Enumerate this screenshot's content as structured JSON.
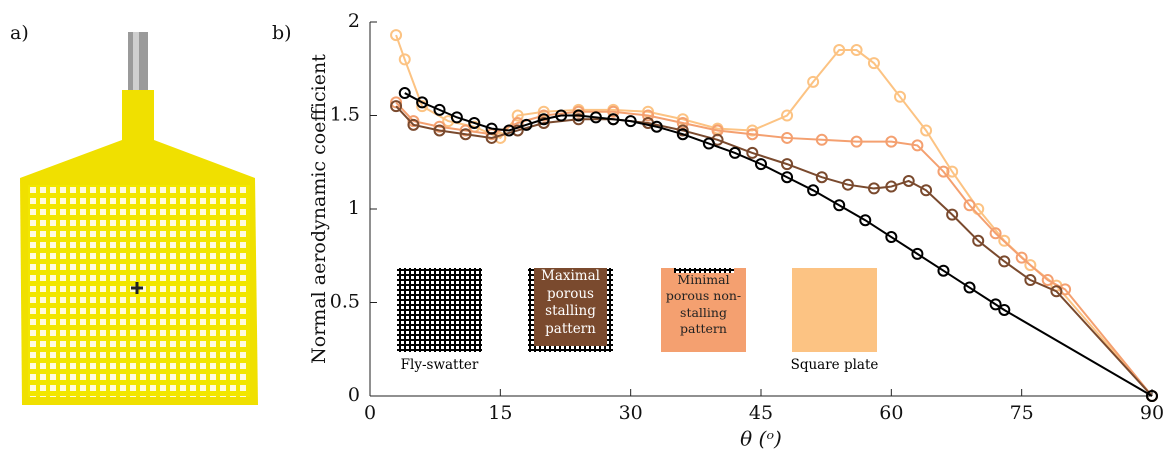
{
  "panel_a_label": "a)",
  "chart_data": {
    "type": "line",
    "panel_label": "b)",
    "x_label": "θ (ᵒ)",
    "y_label": "Normal aerodynamic coefficient",
    "xlim": [
      0,
      90
    ],
    "xticks": [
      0,
      15,
      30,
      45,
      60,
      75,
      90
    ],
    "ylim": [
      0,
      2
    ],
    "yticks": [
      0,
      0.5,
      1,
      1.5,
      2
    ],
    "series": [
      {
        "name": "Fly-swatter",
        "color": "#000000",
        "x": [
          4,
          6,
          8,
          10,
          12,
          14,
          16,
          18,
          20,
          22,
          24,
          26,
          28,
          30,
          33,
          36,
          39,
          42,
          45,
          48,
          51,
          54,
          57,
          60,
          63,
          66,
          69,
          72,
          73,
          90
        ],
        "values": [
          1.62,
          1.57,
          1.53,
          1.49,
          1.46,
          1.43,
          1.42,
          1.45,
          1.48,
          1.5,
          1.5,
          1.49,
          1.48,
          1.47,
          1.44,
          1.4,
          1.35,
          1.3,
          1.24,
          1.17,
          1.1,
          1.02,
          0.94,
          0.85,
          0.76,
          0.67,
          0.58,
          0.49,
          0.46,
          0
        ]
      },
      {
        "name": "Maximal porous stalling pattern",
        "color": "#7a4a2e",
        "x": [
          3,
          5,
          8,
          11,
          14,
          17,
          20,
          24,
          28,
          32,
          36,
          40,
          44,
          48,
          52,
          55,
          58,
          60,
          62,
          64,
          67,
          70,
          73,
          76,
          79,
          90
        ],
        "values": [
          1.55,
          1.45,
          1.42,
          1.4,
          1.38,
          1.42,
          1.46,
          1.48,
          1.48,
          1.46,
          1.42,
          1.37,
          1.3,
          1.24,
          1.17,
          1.13,
          1.11,
          1.12,
          1.15,
          1.1,
          0.97,
          0.83,
          0.72,
          0.62,
          0.56,
          0
        ]
      },
      {
        "name": "Minimal porous non-stalling pattern",
        "color": "#f4a070",
        "x": [
          3,
          5,
          8,
          11,
          14,
          17,
          20,
          24,
          28,
          32,
          36,
          40,
          44,
          48,
          52,
          56,
          60,
          63,
          66,
          69,
          72,
          75,
          78,
          80,
          90
        ],
        "values": [
          1.57,
          1.47,
          1.44,
          1.42,
          1.4,
          1.46,
          1.5,
          1.52,
          1.52,
          1.5,
          1.46,
          1.42,
          1.4,
          1.38,
          1.37,
          1.36,
          1.36,
          1.34,
          1.2,
          1.02,
          0.87,
          0.74,
          0.62,
          0.57,
          0
        ]
      },
      {
        "name": "Square plate",
        "color": "#fcc383",
        "x": [
          3,
          4,
          6,
          9,
          12,
          15,
          17,
          20,
          24,
          28,
          32,
          36,
          40,
          44,
          48,
          51,
          54,
          56,
          58,
          61,
          64,
          67,
          70,
          73,
          76,
          79,
          90
        ],
        "values": [
          1.93,
          1.8,
          1.55,
          1.47,
          1.44,
          1.38,
          1.5,
          1.52,
          1.53,
          1.53,
          1.52,
          1.48,
          1.43,
          1.42,
          1.5,
          1.68,
          1.85,
          1.85,
          1.78,
          1.6,
          1.42,
          1.2,
          1.0,
          0.83,
          0.7,
          0.59,
          0
        ]
      }
    ]
  }
}
